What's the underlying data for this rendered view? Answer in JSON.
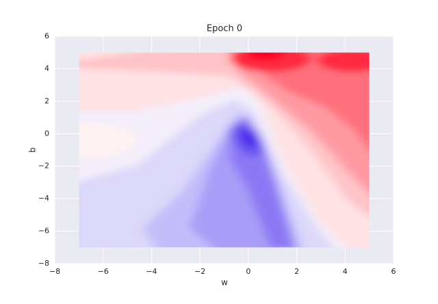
{
  "chart_data": {
    "type": "contour",
    "title": "Epoch 0",
    "xlabel": "w",
    "ylabel": "b",
    "extent": [
      -7,
      5,
      -7,
      5
    ],
    "xlim": [
      -8,
      6
    ],
    "ylim": [
      -8,
      6
    ],
    "xticks": [
      {
        "value": -8,
        "label": "−8"
      },
      {
        "value": -6,
        "label": "−6"
      },
      {
        "value": -4,
        "label": "−4"
      },
      {
        "value": -2,
        "label": "−2"
      },
      0,
      2,
      4,
      6
    ],
    "yticks": [
      {
        "value": -8,
        "label": "−8"
      },
      {
        "value": -6,
        "label": "−6"
      },
      {
        "value": -4,
        "label": "−4"
      },
      {
        "value": -2,
        "label": "−2"
      },
      0,
      2,
      4,
      6
    ],
    "grid": true
  }
}
